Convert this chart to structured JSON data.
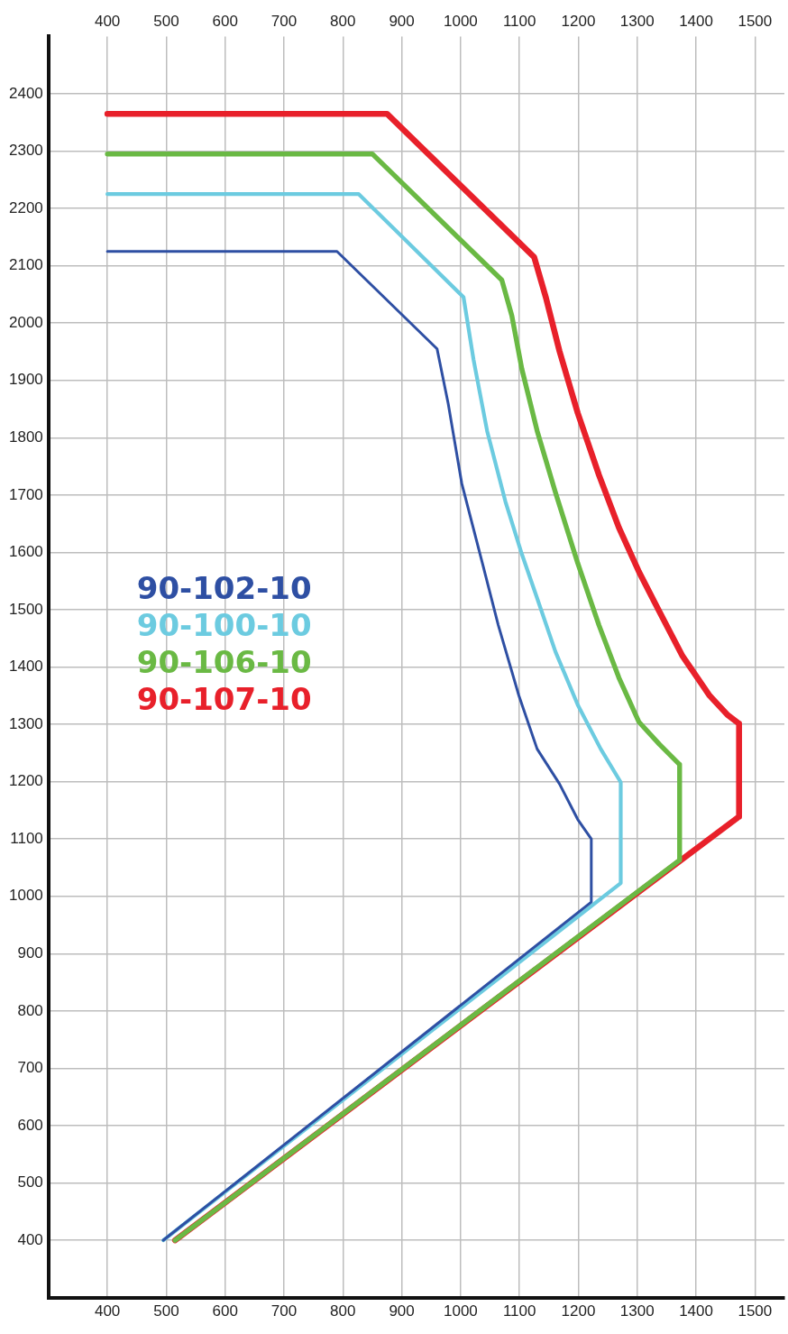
{
  "chart_data": {
    "type": "line",
    "xlim": [
      300,
      1550
    ],
    "xticks": [
      400,
      500,
      600,
      700,
      800,
      900,
      1000,
      1100,
      1200,
      1300,
      1400,
      1500
    ],
    "x2lim": [
      300,
      1550
    ],
    "x2ticks": [
      400,
      500,
      600,
      700,
      800,
      900,
      1000,
      1100,
      1200,
      1300,
      1400,
      1500
    ],
    "ylim": [
      300,
      2500
    ],
    "yticks": [
      400,
      500,
      600,
      700,
      800,
      900,
      1000,
      1100,
      1200,
      1300,
      1400,
      1500,
      1600,
      1700,
      1800,
      1900,
      2000,
      2100,
      2200,
      2300,
      2400
    ],
    "grid": true,
    "legend": "left",
    "marker": "none",
    "line_style": "solid",
    "series": [
      {
        "name": "90-102-10",
        "color": "#2e4fa3",
        "x": [
          400,
          790,
          960,
          979,
          1002,
          1037,
          1064,
          1099,
          1130,
          1168,
          1199,
          1222,
          1222,
          495
        ],
        "values": [
          2125,
          2125,
          1955,
          1859,
          1720,
          1581,
          1473,
          1350,
          1257,
          1196,
          1134,
          1100,
          990,
          400
        ]
      },
      {
        "name": "90-100-10",
        "color": "#6ccbe0",
        "x": [
          400,
          827,
          1005,
          1022,
          1045,
          1076,
          1104,
          1130,
          1161,
          1199,
          1238,
          1272,
          1272,
          495
        ],
        "values": [
          2225,
          2225,
          2045,
          1936,
          1812,
          1689,
          1597,
          1520,
          1427,
          1334,
          1257,
          1199,
          1023,
          400
        ]
      },
      {
        "name": "90-106-10",
        "color": "#6ab944",
        "x": [
          400,
          850,
          1070,
          1087,
          1104,
          1130,
          1161,
          1199,
          1235,
          1269,
          1303,
          1338,
          1372,
          1372,
          515
        ],
        "values": [
          2295,
          2295,
          2075,
          2013,
          1920,
          1812,
          1705,
          1581,
          1473,
          1381,
          1304,
          1265,
          1230,
          1063,
          400
        ]
      },
      {
        "name": "90-107-10",
        "color": "#e8202a",
        "x": [
          400,
          875,
          1125,
          1145,
          1168,
          1199,
          1235,
          1269,
          1303,
          1338,
          1377,
          1423,
          1454,
          1473,
          1473,
          515
        ],
        "values": [
          2365,
          2365,
          2115,
          2044,
          1951,
          1843,
          1735,
          1643,
          1566,
          1496,
          1419,
          1350,
          1316,
          1301,
          1139,
          400
        ]
      }
    ]
  }
}
